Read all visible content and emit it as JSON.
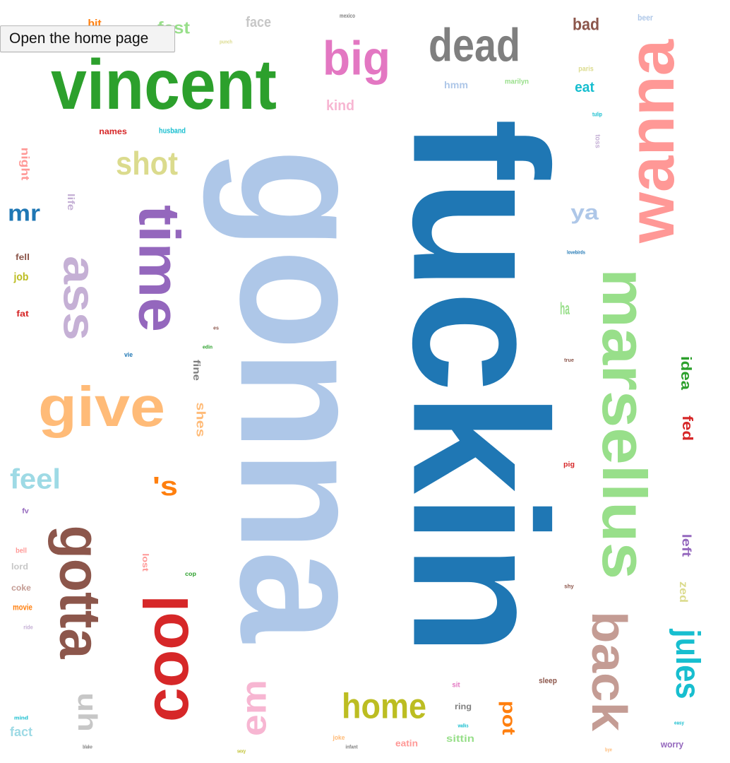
{
  "home_button": {
    "label": "Open the home page"
  },
  "palette": {
    "blue": "#1f77b4",
    "light_blue": "#aec7e8",
    "green": "#2ca02c",
    "light_green": "#98df8a",
    "purple": "#9467bd",
    "light_purple": "#c5b0d5",
    "red": "#d62728",
    "salmon": "#ff9896",
    "brown": "#8c564b",
    "rose_brown": "#c49c94",
    "orange": "#ff7f0e",
    "peach": "#ffbb78",
    "pink": "#e377c2",
    "light_pink": "#f7b6d2",
    "gray": "#7f7f7f",
    "light_gray": "#c7c7c7",
    "olive": "#bcbd22",
    "khaki": "#dbdb8d",
    "teal": "#17becf",
    "light_teal": "#9edae5"
  },
  "words": [
    {
      "text": "fuckin",
      "color": "blue"
    },
    {
      "text": "gonna",
      "color": "light_blue"
    },
    {
      "text": "vincent",
      "color": "green"
    },
    {
      "text": "wanna",
      "color": "salmon"
    },
    {
      "text": "marsellus",
      "color": "light_green"
    },
    {
      "text": "cool",
      "color": "red"
    },
    {
      "text": "gotta",
      "color": "brown"
    },
    {
      "text": "time",
      "color": "purple"
    },
    {
      "text": "give",
      "color": "peach"
    },
    {
      "text": "back",
      "color": "rose_brown"
    },
    {
      "text": "dead",
      "color": "gray"
    },
    {
      "text": "big",
      "color": "pink"
    },
    {
      "text": "ass",
      "color": "light_purple"
    },
    {
      "text": "home",
      "color": "olive"
    },
    {
      "text": "em",
      "color": "light_pink"
    },
    {
      "text": "jules",
      "color": "teal"
    },
    {
      "text": "shot",
      "color": "khaki"
    },
    {
      "text": "feel",
      "color": "light_teal"
    },
    {
      "text": "uh",
      "color": "light_gray"
    },
    {
      "text": "'s",
      "color": "orange"
    },
    {
      "text": "mr",
      "color": "blue"
    },
    {
      "text": "ya",
      "color": "light_blue"
    },
    {
      "text": "bad",
      "color": "brown"
    },
    {
      "text": "fest",
      "color": "light_green"
    },
    {
      "text": "face",
      "color": "light_gray"
    },
    {
      "text": "wrong",
      "color": "rose_brown"
    },
    {
      "text": "bit",
      "color": "orange"
    },
    {
      "text": "eat",
      "color": "teal"
    },
    {
      "text": "kind",
      "color": "light_pink"
    },
    {
      "text": "names",
      "color": "red"
    },
    {
      "text": "husband",
      "color": "teal"
    },
    {
      "text": "idea",
      "color": "green"
    },
    {
      "text": "fed",
      "color": "red"
    },
    {
      "text": "left",
      "color": "purple"
    },
    {
      "text": "zed",
      "color": "khaki"
    },
    {
      "text": "fact",
      "color": "light_teal"
    },
    {
      "text": "worry",
      "color": "purple"
    },
    {
      "text": "sleep",
      "color": "brown"
    },
    {
      "text": "ring",
      "color": "gray"
    },
    {
      "text": "sittin",
      "color": "light_green"
    },
    {
      "text": "eatin",
      "color": "salmon"
    },
    {
      "text": "pot",
      "color": "orange"
    },
    {
      "text": "shes",
      "color": "peach"
    },
    {
      "text": "fine",
      "color": "gray"
    },
    {
      "text": "lord",
      "color": "light_gray"
    },
    {
      "text": "coke",
      "color": "rose_brown"
    },
    {
      "text": "movie",
      "color": "orange"
    },
    {
      "text": "fell",
      "color": "brown"
    },
    {
      "text": "job",
      "color": "olive"
    },
    {
      "text": "fat",
      "color": "red"
    },
    {
      "text": "night",
      "color": "salmon"
    },
    {
      "text": "life",
      "color": "light_purple"
    },
    {
      "text": "hmm",
      "color": "light_blue"
    },
    {
      "text": "marilyn",
      "color": "light_green"
    },
    {
      "text": "paris",
      "color": "khaki"
    },
    {
      "text": "beer",
      "color": "light_blue"
    },
    {
      "text": "mexico",
      "color": "gray"
    },
    {
      "text": "lovebirds",
      "color": "blue"
    },
    {
      "text": "ha",
      "color": "light_green"
    },
    {
      "text": "pig",
      "color": "red"
    },
    {
      "text": "joke",
      "color": "peach"
    },
    {
      "text": "walks",
      "color": "teal"
    },
    {
      "text": "cop",
      "color": "green"
    },
    {
      "text": "sit",
      "color": "pink"
    },
    {
      "text": "lost",
      "color": "salmon"
    },
    {
      "text": "fv",
      "color": "purple"
    },
    {
      "text": "bell",
      "color": "salmon"
    },
    {
      "text": "ride",
      "color": "light_purple"
    },
    {
      "text": "infant",
      "color": "gray"
    },
    {
      "text": "true",
      "color": "brown"
    },
    {
      "text": "shy",
      "color": "brown"
    },
    {
      "text": "es",
      "color": "brown"
    },
    {
      "text": "vie",
      "color": "blue"
    },
    {
      "text": "edin",
      "color": "green"
    },
    {
      "text": "tulip",
      "color": "teal"
    },
    {
      "text": "toss",
      "color": "light_purple"
    },
    {
      "text": "blake",
      "color": "gray"
    },
    {
      "text": "sexy",
      "color": "olive"
    },
    {
      "text": "bye",
      "color": "peach"
    },
    {
      "text": "mind",
      "color": "teal"
    },
    {
      "text": "easy",
      "color": "teal"
    },
    {
      "text": "punch",
      "color": "khaki"
    }
  ]
}
